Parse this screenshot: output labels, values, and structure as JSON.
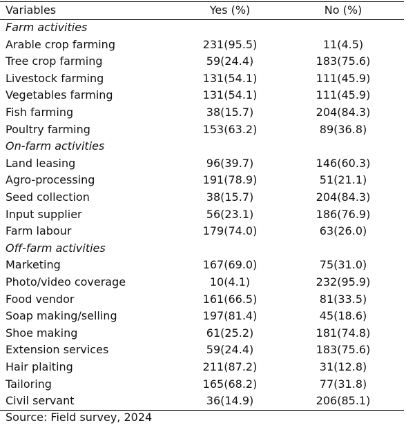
{
  "table": {
    "headers": [
      "Variables",
      "Yes (%)",
      "No (%)"
    ],
    "sections": [
      {
        "title": "Farm activities",
        "rows": [
          [
            "Arable crop farming",
            "231(95.5)",
            "11(4.5)"
          ],
          [
            "Tree crop farming",
            "59(24.4)",
            "183(75.6)"
          ],
          [
            "Livestock farming",
            "131(54.1)",
            "111(45.9)"
          ],
          [
            "Vegetables farming",
            "131(54.1)",
            "111(45.9)"
          ],
          [
            "Fish farming",
            "38(15.7)",
            "204(84.3)"
          ],
          [
            "Poultry farming",
            "153(63.2)",
            "89(36.8)"
          ]
        ]
      },
      {
        "title": "On-farm activities",
        "rows": [
          [
            "Land leasing",
            "96(39.7)",
            "146(60.3)"
          ],
          [
            "Agro-processing",
            "191(78.9)",
            "51(21.1)"
          ],
          [
            "Seed collection",
            "38(15.7)",
            "204(84.3)"
          ],
          [
            "Input supplier",
            "56(23.1)",
            "186(76.9)"
          ],
          [
            "Farm labour",
            "179(74.0)",
            "63(26.0)"
          ]
        ]
      },
      {
        "title": "Off-farm activities",
        "rows": [
          [
            "Marketing",
            "167(69.0)",
            "75(31.0)"
          ],
          [
            "Photo/video coverage",
            "10(4.1)",
            "232(95.9)"
          ],
          [
            "Food vendor",
            "161(66.5)",
            "81(33.5)"
          ],
          [
            "Soap making/selling",
            "197(81.4)",
            "45(18.6)"
          ],
          [
            "Shoe making",
            "61(25.2)",
            "181(74.8)"
          ],
          [
            "Extension services",
            "59(24.4)",
            "183(75.6)"
          ],
          [
            "Hair plaiting",
            "211(87.2)",
            "31(12.8)"
          ],
          [
            "Tailoring",
            "165(68.2)",
            "77(31.8)"
          ],
          [
            "Civil servant",
            "36(14.9)",
            "206(85.1)"
          ]
        ]
      }
    ],
    "source": "Source: Field survey, 2024"
  }
}
